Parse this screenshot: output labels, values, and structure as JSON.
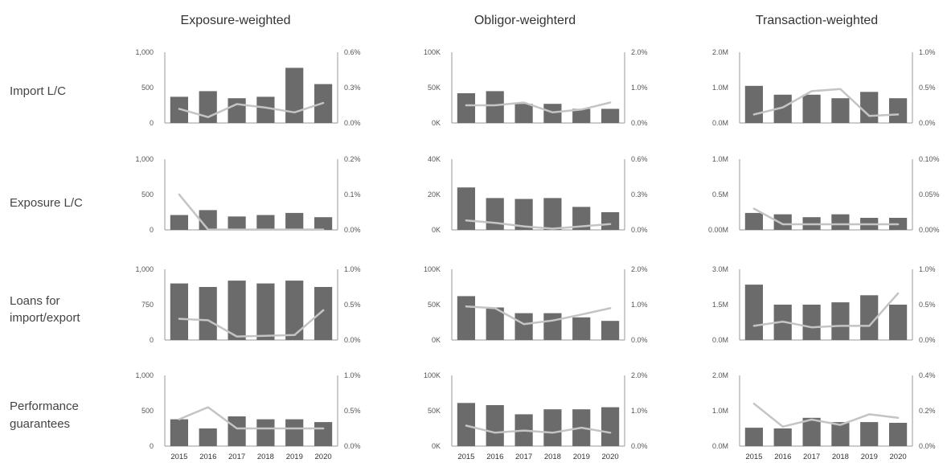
{
  "column_titles": [
    "Exposure-weighted",
    "Obligor-weighterd",
    "Transaction-weighted"
  ],
  "row_labels": [
    [
      "Import L/C"
    ],
    [
      "Exposure L/C"
    ],
    [
      "Loans for",
      "import/export"
    ],
    [
      "Performance",
      "guarantees"
    ]
  ],
  "colors": {
    "bar": "#6b6b6b",
    "line": "#c4c4c4",
    "axis": "#9a9a9a"
  },
  "chart_data": [
    {
      "type": "bar",
      "row": 0,
      "col": 0,
      "categories": [
        "2015",
        "2016",
        "2017",
        "2018",
        "2019",
        "2020"
      ],
      "bars": [
        370,
        450,
        350,
        370,
        780,
        550
      ],
      "bar_axis": [
        0,
        1000
      ],
      "left_ticks": [
        "0",
        "500",
        "1,000"
      ],
      "line": [
        0.12,
        0.05,
        0.16,
        0.13,
        0.09,
        0.17
      ],
      "line_axis": [
        0,
        0.6
      ],
      "right_ticks": [
        "0.0%",
        "0.3%",
        "0.6%"
      ]
    },
    {
      "type": "bar",
      "row": 0,
      "col": 1,
      "categories": [
        "2015",
        "2016",
        "2017",
        "2018",
        "2019",
        "2020"
      ],
      "bars": [
        42000,
        45000,
        27000,
        27000,
        20000,
        20000
      ],
      "bar_axis": [
        0,
        100000
      ],
      "left_ticks": [
        "0K",
        "50K",
        "100K"
      ],
      "line": [
        0.5,
        0.5,
        0.58,
        0.3,
        0.38,
        0.58
      ],
      "line_axis": [
        0,
        2.0
      ],
      "right_ticks": [
        "0.0%",
        "1.0%",
        "2.0%"
      ]
    },
    {
      "type": "bar",
      "row": 0,
      "col": 2,
      "categories": [
        "2015",
        "2016",
        "2017",
        "2018",
        "2019",
        "2020"
      ],
      "bars": [
        1.05,
        0.8,
        0.8,
        0.7,
        0.88,
        0.7
      ],
      "bar_axis": [
        0,
        2.0
      ],
      "left_ticks": [
        "0.0M",
        "1.0M",
        "2.0M"
      ],
      "line": [
        0.12,
        0.22,
        0.45,
        0.48,
        0.1,
        0.12
      ],
      "line_axis": [
        0,
        1.0
      ],
      "right_ticks": [
        "0.0%",
        "0.5%",
        "1.0%"
      ]
    },
    {
      "type": "bar",
      "row": 1,
      "col": 0,
      "categories": [
        "2015",
        "2016",
        "2017",
        "2018",
        "2019",
        "2020"
      ],
      "bars": [
        210,
        280,
        190,
        210,
        240,
        180
      ],
      "bar_axis": [
        0,
        1000
      ],
      "left_ticks": [
        "0",
        "500",
        "1,000"
      ],
      "line": [
        0.1,
        0.001,
        0.001,
        0.001,
        0.001,
        0.001
      ],
      "line_axis": [
        0,
        0.2
      ],
      "right_ticks": [
        "0.0%",
        "0.1%",
        "0.2%"
      ]
    },
    {
      "type": "bar",
      "row": 1,
      "col": 1,
      "categories": [
        "2015",
        "2016",
        "2017",
        "2018",
        "2019",
        "2020"
      ],
      "bars": [
        24000,
        18000,
        17500,
        18000,
        13000,
        10000
      ],
      "bar_axis": [
        0,
        40000
      ],
      "left_ticks": [
        "0K",
        "20K",
        "40K"
      ],
      "line": [
        0.08,
        0.06,
        0.03,
        0.01,
        0.03,
        0.05
      ],
      "line_axis": [
        0,
        0.6
      ],
      "right_ticks": [
        "0.0%",
        "0.3%",
        "0.6%"
      ]
    },
    {
      "type": "bar",
      "row": 1,
      "col": 2,
      "categories": [
        "2015",
        "2016",
        "2017",
        "2018",
        "2019",
        "2020"
      ],
      "bars": [
        0.24,
        0.22,
        0.18,
        0.22,
        0.17,
        0.17
      ],
      "bar_axis": [
        0,
        1.0
      ],
      "left_ticks": [
        "0.00M",
        "0.5M",
        "1.0M"
      ],
      "line": [
        0.03,
        0.008,
        0.008,
        0.008,
        0.008,
        0.008
      ],
      "line_axis": [
        0,
        0.1
      ],
      "right_ticks": [
        "0.00%",
        "0.05%",
        "0.10%"
      ]
    },
    {
      "type": "bar",
      "row": 2,
      "col": 0,
      "categories": [
        "2015",
        "2016",
        "2017",
        "2018",
        "2019",
        "2020"
      ],
      "bars": [
        800,
        750,
        840,
        800,
        840,
        750
      ],
      "bar_axis": [
        0,
        1000
      ],
      "left_ticks": [
        "0",
        "750",
        "1,000"
      ],
      "line": [
        0.3,
        0.28,
        0.05,
        0.06,
        0.07,
        0.42
      ],
      "line_axis": [
        0,
        1.0
      ],
      "right_ticks": [
        "0.0%",
        "0.5%",
        "1.0%"
      ]
    },
    {
      "type": "bar",
      "row": 2,
      "col": 1,
      "categories": [
        "2015",
        "2016",
        "2017",
        "2018",
        "2019",
        "2020"
      ],
      "bars": [
        62000,
        46000,
        38000,
        38000,
        32000,
        27000
      ],
      "bar_axis": [
        0,
        100000
      ],
      "left_ticks": [
        "0K",
        "50K",
        "100K"
      ],
      "line": [
        0.95,
        0.9,
        0.45,
        0.55,
        0.72,
        0.9
      ],
      "line_axis": [
        0,
        2.0
      ],
      "right_ticks": [
        "0.0%",
        "1.0%",
        "2.0%"
      ]
    },
    {
      "type": "bar",
      "row": 2,
      "col": 2,
      "categories": [
        "2015",
        "2016",
        "2017",
        "2018",
        "2019",
        "2020"
      ],
      "bars": [
        2.35,
        1.5,
        1.5,
        1.6,
        1.9,
        1.5
      ],
      "bar_axis": [
        0,
        3.0
      ],
      "left_ticks": [
        "0.0M",
        "1.5M",
        "3.0M"
      ],
      "line": [
        0.2,
        0.26,
        0.18,
        0.2,
        0.2,
        0.66
      ],
      "line_axis": [
        0,
        1.0
      ],
      "right_ticks": [
        "0.0%",
        "0.5%",
        "1.0%"
      ]
    },
    {
      "type": "bar",
      "row": 3,
      "col": 0,
      "categories": [
        "2015",
        "2016",
        "2017",
        "2018",
        "2019",
        "2020"
      ],
      "bars": [
        380,
        250,
        420,
        380,
        380,
        340
      ],
      "bar_axis": [
        0,
        1000
      ],
      "left_ticks": [
        "0",
        "500",
        "1,000"
      ],
      "line": [
        0.38,
        0.55,
        0.25,
        0.25,
        0.25,
        0.25
      ],
      "line_axis": [
        0,
        1.0
      ],
      "right_ticks": [
        "0.0%",
        "0.5%",
        "1.0%"
      ]
    },
    {
      "type": "bar",
      "row": 3,
      "col": 1,
      "categories": [
        "2015",
        "2016",
        "2017",
        "2018",
        "2019",
        "2020"
      ],
      "bars": [
        61000,
        58000,
        45000,
        52000,
        52000,
        55000
      ],
      "bar_axis": [
        0,
        100000
      ],
      "left_ticks": [
        "0K",
        "50K",
        "100K"
      ],
      "line": [
        0.58,
        0.38,
        0.44,
        0.38,
        0.52,
        0.38
      ],
      "line_axis": [
        0,
        2.0
      ],
      "right_ticks": [
        "0.0%",
        "1.0%",
        "2.0%"
      ]
    },
    {
      "type": "bar",
      "row": 3,
      "col": 2,
      "categories": [
        "2015",
        "2016",
        "2017",
        "2018",
        "2019",
        "2020"
      ],
      "bars": [
        0.52,
        0.5,
        0.8,
        0.68,
        0.68,
        0.66
      ],
      "bar_axis": [
        0,
        2.0
      ],
      "left_ticks": [
        "0.0M",
        "1.0M",
        "2.0M"
      ],
      "line": [
        0.24,
        0.11,
        0.15,
        0.12,
        0.18,
        0.16
      ],
      "line_axis": [
        0,
        0.4
      ],
      "right_ticks": [
        "0.0%",
        "0.2%",
        "0.4%"
      ]
    }
  ]
}
